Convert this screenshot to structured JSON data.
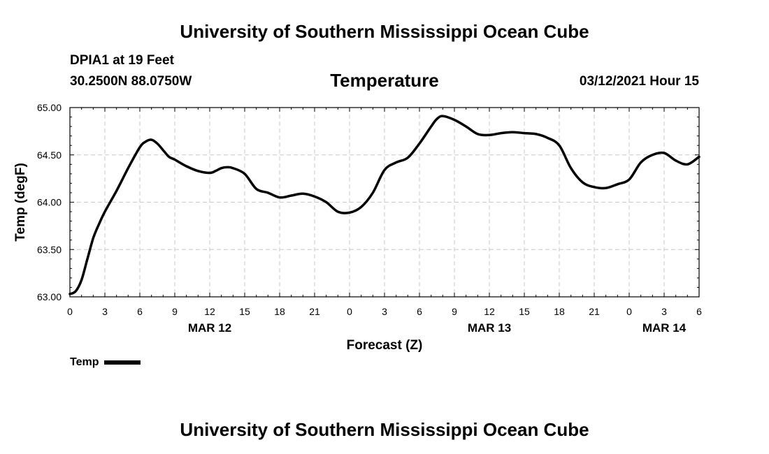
{
  "header": {
    "title_top": "University of Southern Mississippi Ocean Cube",
    "title_bottom": "University of Southern Mississippi Ocean Cube",
    "station": "DPIA1 at 19 Feet",
    "coordinates": "30.2500N 88.0750W",
    "datetime": "03/12/2021 Hour 15"
  },
  "legend": {
    "label": "Temp"
  },
  "colors": {
    "line": "#000000",
    "grid": "#c8c8c8",
    "background": "#ffffff"
  },
  "chart_data": {
    "type": "line",
    "title": "Temperature",
    "xlabel": "Forecast (Z)",
    "ylabel": "Temp (degF)",
    "x_unit": "hours from MAR 12 00Z",
    "xlim": [
      0,
      54
    ],
    "ylim": [
      63.0,
      65.0
    ],
    "xtick_values": [
      0,
      3,
      6,
      9,
      12,
      15,
      18,
      21,
      24,
      27,
      30,
      33,
      36,
      39,
      42,
      45,
      48,
      51,
      54
    ],
    "xtick_labels": [
      "0",
      "3",
      "6",
      "9",
      "12",
      "15",
      "18",
      "21",
      "0",
      "3",
      "6",
      "9",
      "12",
      "15",
      "18",
      "21",
      "0",
      "3",
      "6"
    ],
    "ytick_values": [
      63.0,
      63.5,
      64.0,
      64.5,
      65.0
    ],
    "ytick_labels": [
      "63.00",
      "63.50",
      "64.00",
      "64.50",
      "65.00"
    ],
    "date_labels": [
      {
        "x": 12,
        "label": "MAR 12"
      },
      {
        "x": 36,
        "label": "MAR 13"
      },
      {
        "x": 51,
        "label": "MAR 14"
      }
    ],
    "grid": true,
    "legend_position": "bottom-left",
    "series": [
      {
        "name": "Temp",
        "x": [
          0,
          0.5,
          1,
          1.5,
          2,
          2.5,
          3,
          4,
          5,
          6,
          6.5,
          7,
          7.5,
          8,
          8.5,
          9,
          10,
          11,
          12,
          12.5,
          13,
          13.5,
          14,
          15,
          16,
          17,
          18,
          19,
          20,
          21,
          22,
          23,
          24,
          25,
          26,
          27,
          28,
          29,
          30,
          31,
          31.5,
          32,
          33,
          34,
          35,
          36,
          37,
          38,
          39,
          40,
          41,
          42,
          43,
          44,
          45,
          46,
          47,
          48,
          49,
          50,
          51,
          52,
          53,
          54
        ],
        "values": [
          63.03,
          63.06,
          63.18,
          63.4,
          63.62,
          63.77,
          63.9,
          64.12,
          64.36,
          64.58,
          64.64,
          64.66,
          64.62,
          64.55,
          64.48,
          64.45,
          64.38,
          64.33,
          64.31,
          64.33,
          64.36,
          64.37,
          64.36,
          64.3,
          64.14,
          64.1,
          64.05,
          64.07,
          64.09,
          64.06,
          64.0,
          63.9,
          63.89,
          63.95,
          64.1,
          64.34,
          64.42,
          64.47,
          64.62,
          64.8,
          64.88,
          64.91,
          64.87,
          64.8,
          64.72,
          64.71,
          64.73,
          64.74,
          64.73,
          64.72,
          64.68,
          64.6,
          64.36,
          64.21,
          64.16,
          64.15,
          64.19,
          64.24,
          64.42,
          64.5,
          64.52,
          64.44,
          64.4,
          64.48
        ]
      }
    ]
  }
}
